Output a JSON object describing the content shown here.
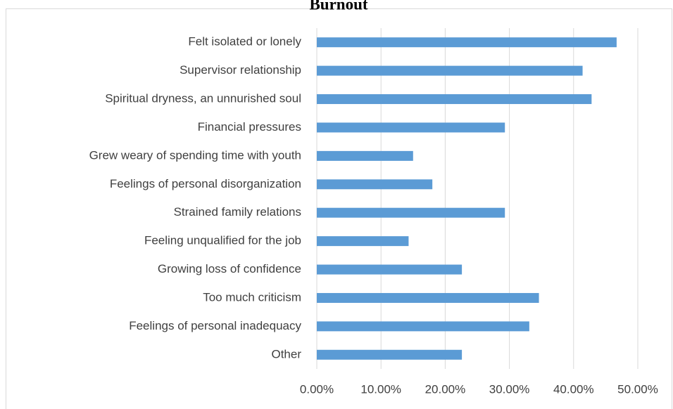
{
  "chart_data": {
    "type": "bar",
    "orientation": "horizontal",
    "title": "Burnout",
    "categories": [
      "Felt isolated or lonely",
      "Supervisor relationship",
      "Spiritual dryness, an unnurished soul",
      "Financial pressures",
      "Grew weary of spending time with youth",
      "Feelings of personal disorganization",
      "Strained family relations",
      "Feeling unqualified for the job",
      "Growing loss of confidence",
      "Too much criticism",
      "Feelings of personal inadequacy",
      "Other"
    ],
    "values": [
      0.467,
      0.414,
      0.428,
      0.293,
      0.15,
      0.18,
      0.293,
      0.143,
      0.226,
      0.346,
      0.331,
      0.226
    ],
    "color": "#5b9bd5",
    "xlim": [
      0,
      0.5
    ],
    "xticks": [
      {
        "value": 0,
        "label": "0.00%"
      },
      {
        "value": 0.1,
        "label": "10.00%"
      },
      {
        "value": 0.2,
        "label": "20.00%"
      },
      {
        "value": 0.3,
        "label": "30.00%"
      },
      {
        "value": 0.4,
        "label": "40.00%"
      },
      {
        "value": 0.5,
        "label": "50.00%"
      }
    ],
    "grid": true
  }
}
